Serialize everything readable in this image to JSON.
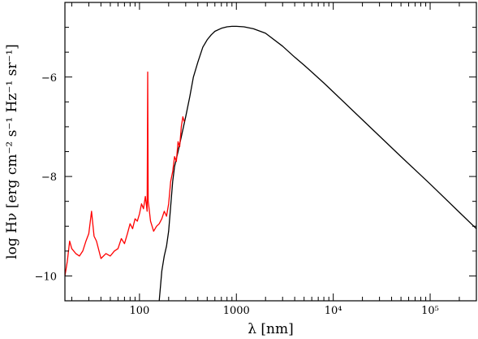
{
  "chart_data": {
    "type": "line",
    "title": "",
    "xlabel": "λ [nm]",
    "ylabel": "log Hν [erg cm⁻² s⁻¹ Hz⁻¹ sr⁻¹]",
    "x_scale": "log",
    "xlim": [
      17,
      300000
    ],
    "ylim": [
      -10.5,
      -4.5
    ],
    "x_ticks": [
      {
        "value": 100,
        "label": "100"
      },
      {
        "value": 1000,
        "label": "1000"
      },
      {
        "value": 10000,
        "label": "10⁴"
      },
      {
        "value": 100000,
        "label": "10⁵"
      }
    ],
    "y_ticks": [
      {
        "value": -10,
        "label": "−10"
      },
      {
        "value": -8,
        "label": "−8"
      },
      {
        "value": -6,
        "label": "−6"
      }
    ],
    "grid": false,
    "legend": "none",
    "series": [
      {
        "color": "#000000",
        "x": [
          160,
          170,
          180,
          190,
          200,
          210,
          220,
          230,
          250,
          270,
          300,
          330,
          360,
          400,
          450,
          500,
          550,
          600,
          700,
          800,
          900,
          1000,
          1200,
          1500,
          2000,
          3000,
          4000,
          5000,
          6000,
          8000,
          10000,
          20000,
          50000,
          100000,
          200000,
          300000
        ],
        "y": [
          -10.5,
          -9.9,
          -9.6,
          -9.4,
          -9.1,
          -8.6,
          -8.1,
          -7.8,
          -7.5,
          -7.2,
          -6.8,
          -6.4,
          -6.0,
          -5.7,
          -5.4,
          -5.25,
          -5.15,
          -5.08,
          -5.02,
          -4.99,
          -4.98,
          -4.98,
          -4.99,
          -5.03,
          -5.12,
          -5.38,
          -5.6,
          -5.76,
          -5.9,
          -6.12,
          -6.3,
          -6.86,
          -7.6,
          -8.15,
          -8.72,
          -9.05
        ]
      },
      {
        "color": "#ff0000",
        "x": [
          17,
          18,
          19,
          20,
          22,
          24,
          26,
          28,
          30,
          32,
          34,
          36,
          40,
          45,
          50,
          55,
          60,
          65,
          70,
          75,
          80,
          85,
          90,
          95,
          100,
          105,
          110,
          115,
          120,
          121.6,
          123,
          125,
          130,
          140,
          150,
          160,
          170,
          180,
          190,
          200,
          210,
          220,
          230,
          240,
          250,
          260,
          270,
          280,
          290
        ],
        "y": [
          -10.0,
          -9.7,
          -9.3,
          -9.45,
          -9.55,
          -9.6,
          -9.5,
          -9.3,
          -9.15,
          -8.7,
          -9.2,
          -9.3,
          -9.65,
          -9.55,
          -9.6,
          -9.5,
          -9.45,
          -9.25,
          -9.35,
          -9.15,
          -8.95,
          -9.05,
          -8.85,
          -8.9,
          -8.75,
          -8.55,
          -8.65,
          -8.4,
          -8.7,
          -5.9,
          -8.5,
          -8.6,
          -8.9,
          -9.1,
          -9.0,
          -8.95,
          -8.85,
          -8.7,
          -8.8,
          -8.55,
          -8.1,
          -7.9,
          -7.6,
          -7.7,
          -7.3,
          -7.4,
          -7.0,
          -6.8,
          -6.9
        ]
      }
    ]
  }
}
